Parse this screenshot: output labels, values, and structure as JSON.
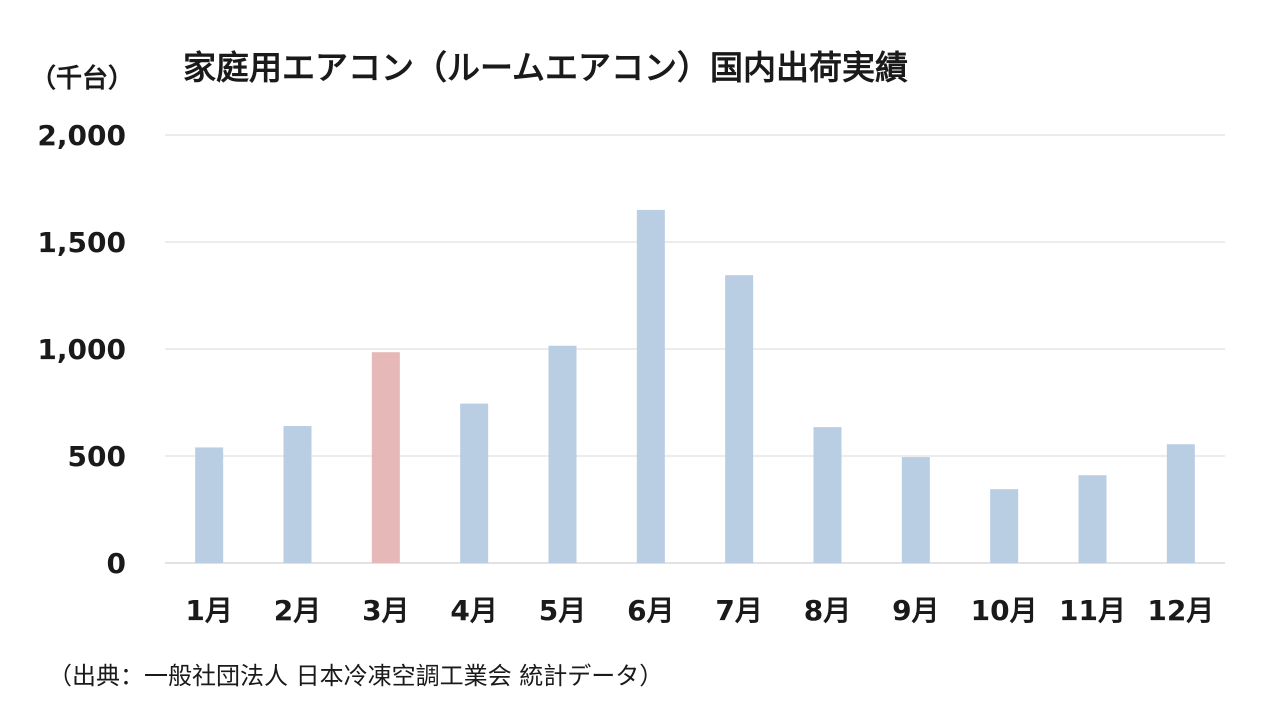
{
  "chart_data": {
    "type": "bar",
    "title": "家庭用エアコン（ルームエアコン）国内出荷実績",
    "ylabel": "（千台）",
    "xlabel": "",
    "categories": [
      "1月",
      "2月",
      "3月",
      "4月",
      "5月",
      "6月",
      "7月",
      "8月",
      "9月",
      "10月",
      "11月",
      "12月"
    ],
    "values": [
      540,
      640,
      985,
      745,
      1015,
      1650,
      1345,
      635,
      495,
      345,
      410,
      555
    ],
    "highlight_index": 2,
    "ylim": [
      0,
      2000
    ],
    "yticks": [
      0,
      500,
      1000,
      1500,
      2000
    ],
    "ytick_labels": [
      "0",
      "500",
      "1,000",
      "1,500",
      "2,000"
    ],
    "grid": true,
    "colors": {
      "bar": "#b9cde3",
      "highlight": "#e6b9b8",
      "grid": "#d9d9d9"
    }
  },
  "source": "（出典：一般社団法人 日本冷凍空調工業会 統計データ）"
}
